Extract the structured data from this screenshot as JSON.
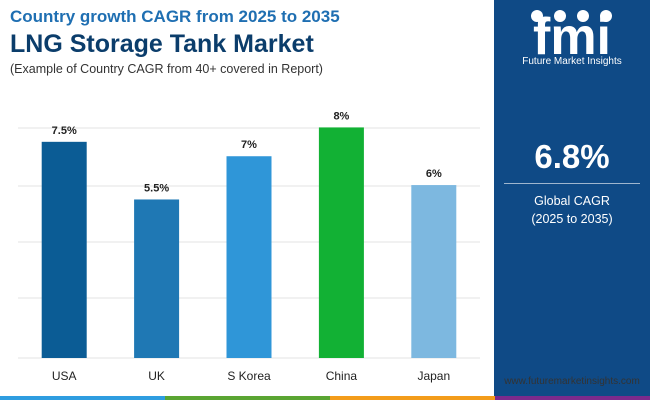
{
  "header": {
    "subtitle": "Country growth CAGR from 2025 to 2035",
    "title": "LNG Storage Tank Market",
    "note": "(Example of Country CAGR from 40+ covered in Report)"
  },
  "sidebar": {
    "logo_text": "fmi",
    "logo_caption": "Future Market Insights",
    "value": "6.8%",
    "label_line1": "Global CAGR",
    "label_line2": "(2025 to 2035)"
  },
  "footer": {
    "website": "www.futuremarketinsights.com"
  },
  "colors": {
    "sidebar": "#0f4a86",
    "bottom_bar": [
      "#2e9de0",
      "#5aa532",
      "#f39c1a",
      "#7b2a8c"
    ]
  },
  "chart_data": {
    "type": "bar",
    "categories": [
      "USA",
      "UK",
      "S Korea",
      "China",
      "Japan"
    ],
    "values": [
      7.5,
      5.5,
      7,
      8,
      6
    ],
    "value_labels": [
      "7.5%",
      "5.5%",
      "7%",
      "8%",
      "6%"
    ],
    "colors": [
      "#0b5c95",
      "#1f78b4",
      "#2f96d8",
      "#12b134",
      "#7db8e0"
    ],
    "ylim": [
      0,
      8.5
    ],
    "grid": true,
    "title": "",
    "xlabel": "",
    "ylabel": ""
  }
}
